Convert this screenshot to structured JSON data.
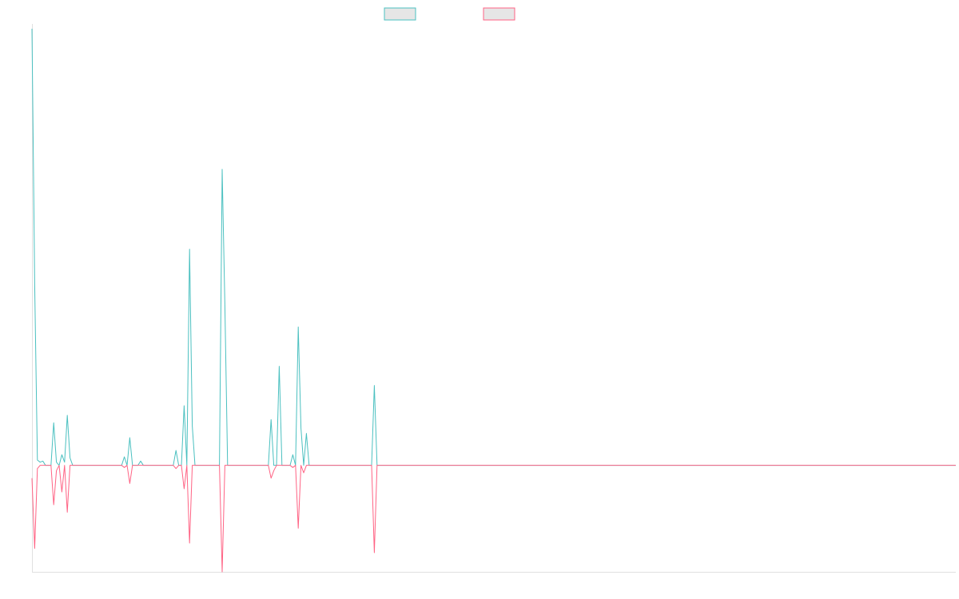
{
  "colors": {
    "series1": "#4bc0c0",
    "series2": "#ff6384",
    "legend_fill": "#e6e6e6",
    "axis": "#e0e0e0",
    "background": "#ffffff"
  },
  "chart_data": {
    "type": "line",
    "title": "",
    "xlabel": "",
    "ylabel": "",
    "grid": false,
    "legend": "top-center",
    "x_count": 340,
    "ylim": [
      -100,
      410
    ],
    "series": [
      {
        "color": "#4bc0c0",
        "style": "line",
        "points": [
          [
            0,
            410
          ],
          [
            1,
            170
          ],
          [
            2,
            5
          ],
          [
            3,
            3
          ],
          [
            4,
            4
          ],
          [
            5,
            0
          ],
          [
            7,
            0
          ],
          [
            8,
            40
          ],
          [
            9,
            3
          ],
          [
            10,
            0
          ],
          [
            11,
            10
          ],
          [
            12,
            3
          ],
          [
            13,
            47
          ],
          [
            14,
            7
          ],
          [
            15,
            0
          ],
          [
            33,
            0
          ],
          [
            34,
            8
          ],
          [
            35,
            0
          ],
          [
            36,
            26
          ],
          [
            37,
            0
          ],
          [
            38,
            0
          ],
          [
            39,
            0
          ],
          [
            40,
            4
          ],
          [
            41,
            0
          ],
          [
            52,
            0
          ],
          [
            53,
            14
          ],
          [
            54,
            0
          ],
          [
            55,
            0
          ],
          [
            56,
            56
          ],
          [
            57,
            0
          ],
          [
            58,
            203
          ],
          [
            59,
            37
          ],
          [
            60,
            0
          ],
          [
            69,
            0
          ],
          [
            70,
            278
          ],
          [
            71,
            150
          ],
          [
            72,
            0
          ],
          [
            87,
            0
          ],
          [
            88,
            43
          ],
          [
            89,
            0
          ],
          [
            90,
            0
          ],
          [
            91,
            93
          ],
          [
            92,
            0
          ],
          [
            95,
            0
          ],
          [
            96,
            10
          ],
          [
            97,
            0
          ],
          [
            98,
            130
          ],
          [
            99,
            35
          ],
          [
            100,
            0
          ],
          [
            101,
            30
          ],
          [
            102,
            0
          ],
          [
            125,
            0
          ],
          [
            126,
            75
          ],
          [
            127,
            0
          ],
          [
            340,
            0
          ]
        ]
      },
      {
        "color": "#ff6384",
        "style": "line",
        "points": [
          [
            0,
            -12
          ],
          [
            1,
            -78
          ],
          [
            2,
            -3
          ],
          [
            3,
            0
          ],
          [
            7,
            0
          ],
          [
            8,
            -37
          ],
          [
            9,
            -5
          ],
          [
            10,
            0
          ],
          [
            11,
            -25
          ],
          [
            12,
            0
          ],
          [
            13,
            -44
          ],
          [
            14,
            0
          ],
          [
            15,
            0
          ],
          [
            33,
            0
          ],
          [
            34,
            -2
          ],
          [
            35,
            0
          ],
          [
            36,
            -17
          ],
          [
            37,
            0
          ],
          [
            52,
            0
          ],
          [
            53,
            -3
          ],
          [
            54,
            0
          ],
          [
            55,
            0
          ],
          [
            56,
            -22
          ],
          [
            57,
            0
          ],
          [
            58,
            -73
          ],
          [
            59,
            0
          ],
          [
            60,
            0
          ],
          [
            69,
            0
          ],
          [
            70,
            -100
          ],
          [
            71,
            0
          ],
          [
            87,
            0
          ],
          [
            88,
            -12
          ],
          [
            89,
            -5
          ],
          [
            90,
            0
          ],
          [
            95,
            0
          ],
          [
            96,
            -2
          ],
          [
            97,
            0
          ],
          [
            98,
            -59
          ],
          [
            99,
            0
          ],
          [
            100,
            -7
          ],
          [
            101,
            0
          ],
          [
            102,
            0
          ],
          [
            125,
            0
          ],
          [
            126,
            -82
          ],
          [
            127,
            0
          ],
          [
            340,
            0
          ]
        ]
      }
    ]
  }
}
